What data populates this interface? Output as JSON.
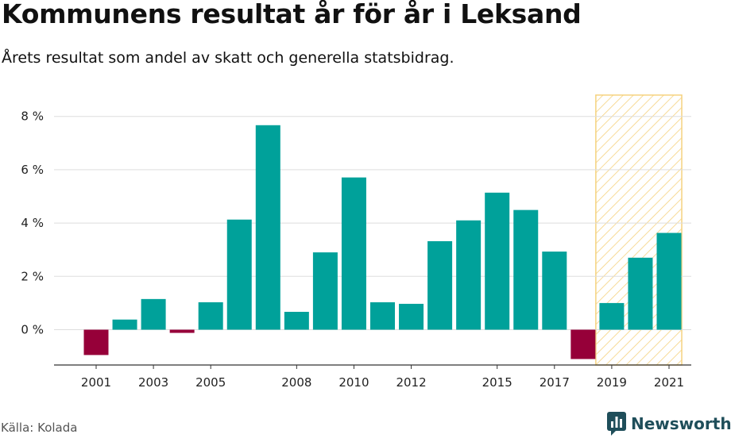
{
  "header": {
    "title": "Kommunens resultat år för år i Leksand",
    "subtitle": "Årets resultat som andel av skatt och generella statsbidrag."
  },
  "footer": {
    "source": "Källa: Kolada",
    "brand": "Newsworthy",
    "brand_icon": "newsworthy-logo-icon"
  },
  "colors": {
    "positive": "#00a19a",
    "negative": "#960039",
    "highlight_stroke": "#f5d27f",
    "grid": "#dddddd",
    "axis": "#333333",
    "brand": "#1f4e5a"
  },
  "chart_data": {
    "type": "bar",
    "title": "Kommunens resultat år för år i Leksand",
    "subtitle": "Årets resultat som andel av skatt och generella statsbidrag.",
    "x": [
      2001,
      2002,
      2003,
      2004,
      2005,
      2006,
      2007,
      2008,
      2009,
      2010,
      2011,
      2012,
      2013,
      2014,
      2015,
      2016,
      2017,
      2018,
      2019,
      2020,
      2021
    ],
    "values": [
      -0.95,
      0.38,
      1.15,
      -0.12,
      1.03,
      4.13,
      7.67,
      0.67,
      2.9,
      5.71,
      1.03,
      0.97,
      3.32,
      4.1,
      5.14,
      4.49,
      2.93,
      -1.1,
      1.0,
      2.7,
      3.63
    ],
    "x_tick_labels": [
      "2001",
      "2003",
      "2005",
      "2008",
      "2010",
      "2012",
      "2015",
      "2017",
      "2019",
      "2021"
    ],
    "y_ticks": [
      0,
      2,
      4,
      6,
      8
    ],
    "y_tick_labels": [
      "0 %",
      "2 %",
      "4 %",
      "6 %",
      "8 %"
    ],
    "ylim": [
      -1.3,
      8.8
    ],
    "highlight_range": [
      2019,
      2021
    ],
    "grid": true,
    "legend": "none"
  }
}
